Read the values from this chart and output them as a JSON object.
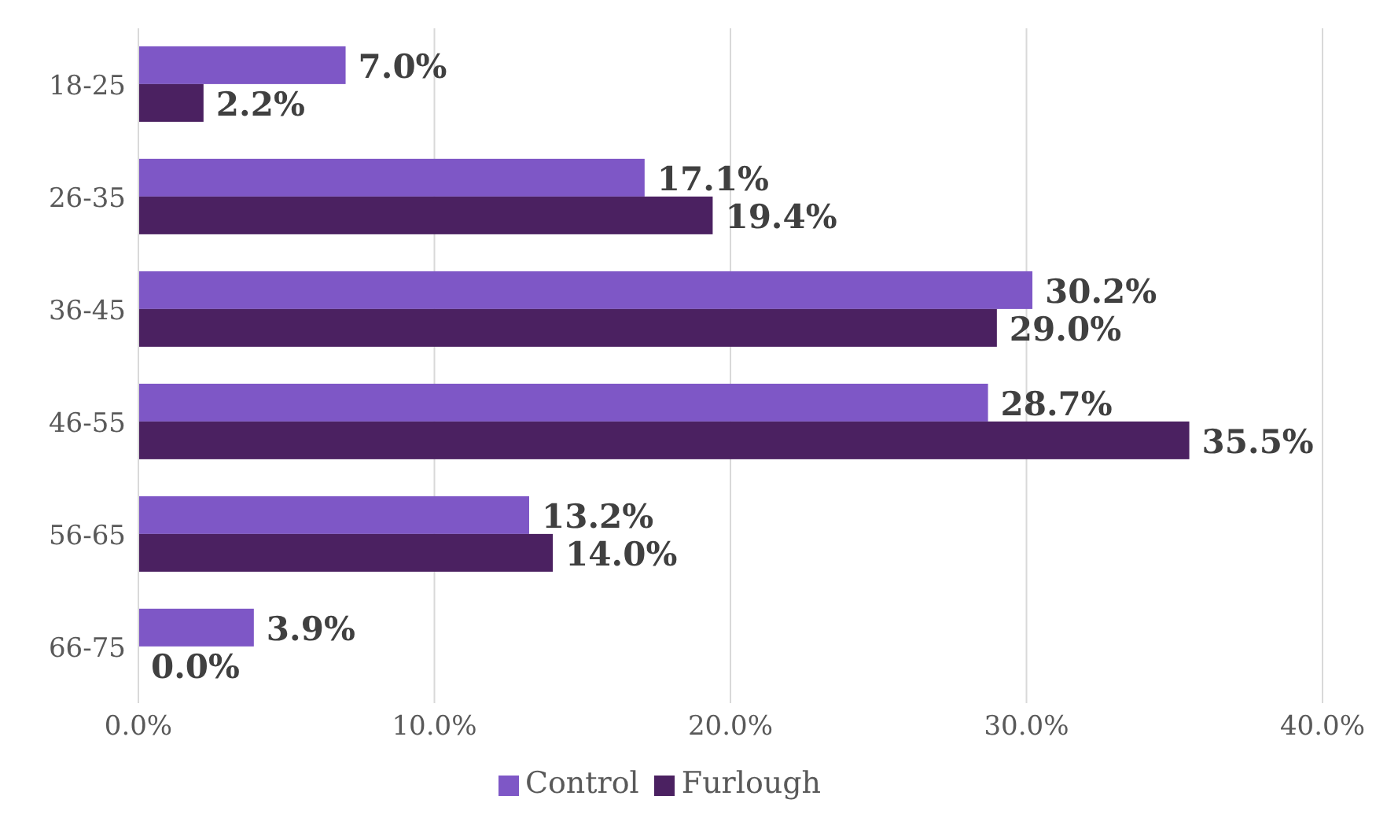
{
  "chart_data": {
    "type": "bar",
    "orientation": "horizontal",
    "categories": [
      "18-25",
      "26-35",
      "36-45",
      "46-55",
      "56-65",
      "66-75"
    ],
    "series": [
      {
        "name": "Control",
        "color": "#7e57c6",
        "values": [
          7.0,
          17.1,
          30.2,
          28.7,
          13.2,
          3.9
        ],
        "value_labels": [
          "7.0%",
          "17.1%",
          "30.2%",
          "28.7%",
          "13.2%",
          "3.9%"
        ]
      },
      {
        "name": "Furlough",
        "color": "#4b2161",
        "values": [
          2.2,
          19.4,
          29.0,
          35.5,
          14.0,
          0.0
        ],
        "value_labels": [
          "2.2%",
          "19.4%",
          "29.0%",
          "35.5%",
          "14.0%",
          "0.0%"
        ]
      }
    ],
    "xlim": [
      0,
      40
    ],
    "xticks": [
      {
        "value": 0,
        "label": "0.0%"
      },
      {
        "value": 10,
        "label": "10.0%"
      },
      {
        "value": 20,
        "label": "20.0%"
      },
      {
        "value": 30,
        "label": "30.0%"
      },
      {
        "value": 40,
        "label": "40.0%"
      }
    ],
    "grid": "x",
    "legend": "bottom"
  }
}
